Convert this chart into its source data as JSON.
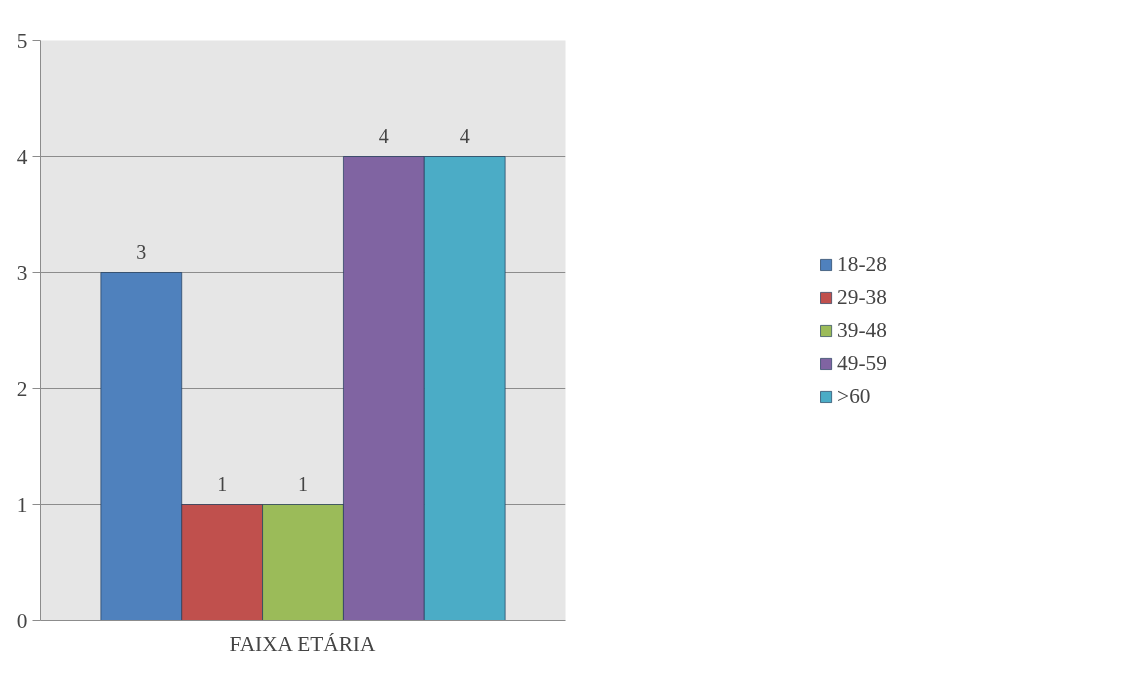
{
  "chart_data": {
    "type": "bar",
    "categories": [
      "FAIXA ETÁRIA"
    ],
    "series": [
      {
        "name": "18-28",
        "color": "#4f81bd",
        "values": [
          3
        ]
      },
      {
        "name": "29-38",
        "color": "#c0504d",
        "values": [
          1
        ]
      },
      {
        "name": "39-48",
        "color": "#9bbb59",
        "values": [
          1
        ]
      },
      {
        "name": "49-59",
        "color": "#8064a2",
        "values": [
          4
        ]
      },
      {
        "name": ">60",
        "color": "#4bacc6",
        "values": [
          4
        ]
      }
    ],
    "ylim": [
      0,
      5
    ],
    "yticks": [
      0,
      1,
      2,
      3,
      4,
      5
    ],
    "grid": "y",
    "legend": "right",
    "data_labels": true
  }
}
